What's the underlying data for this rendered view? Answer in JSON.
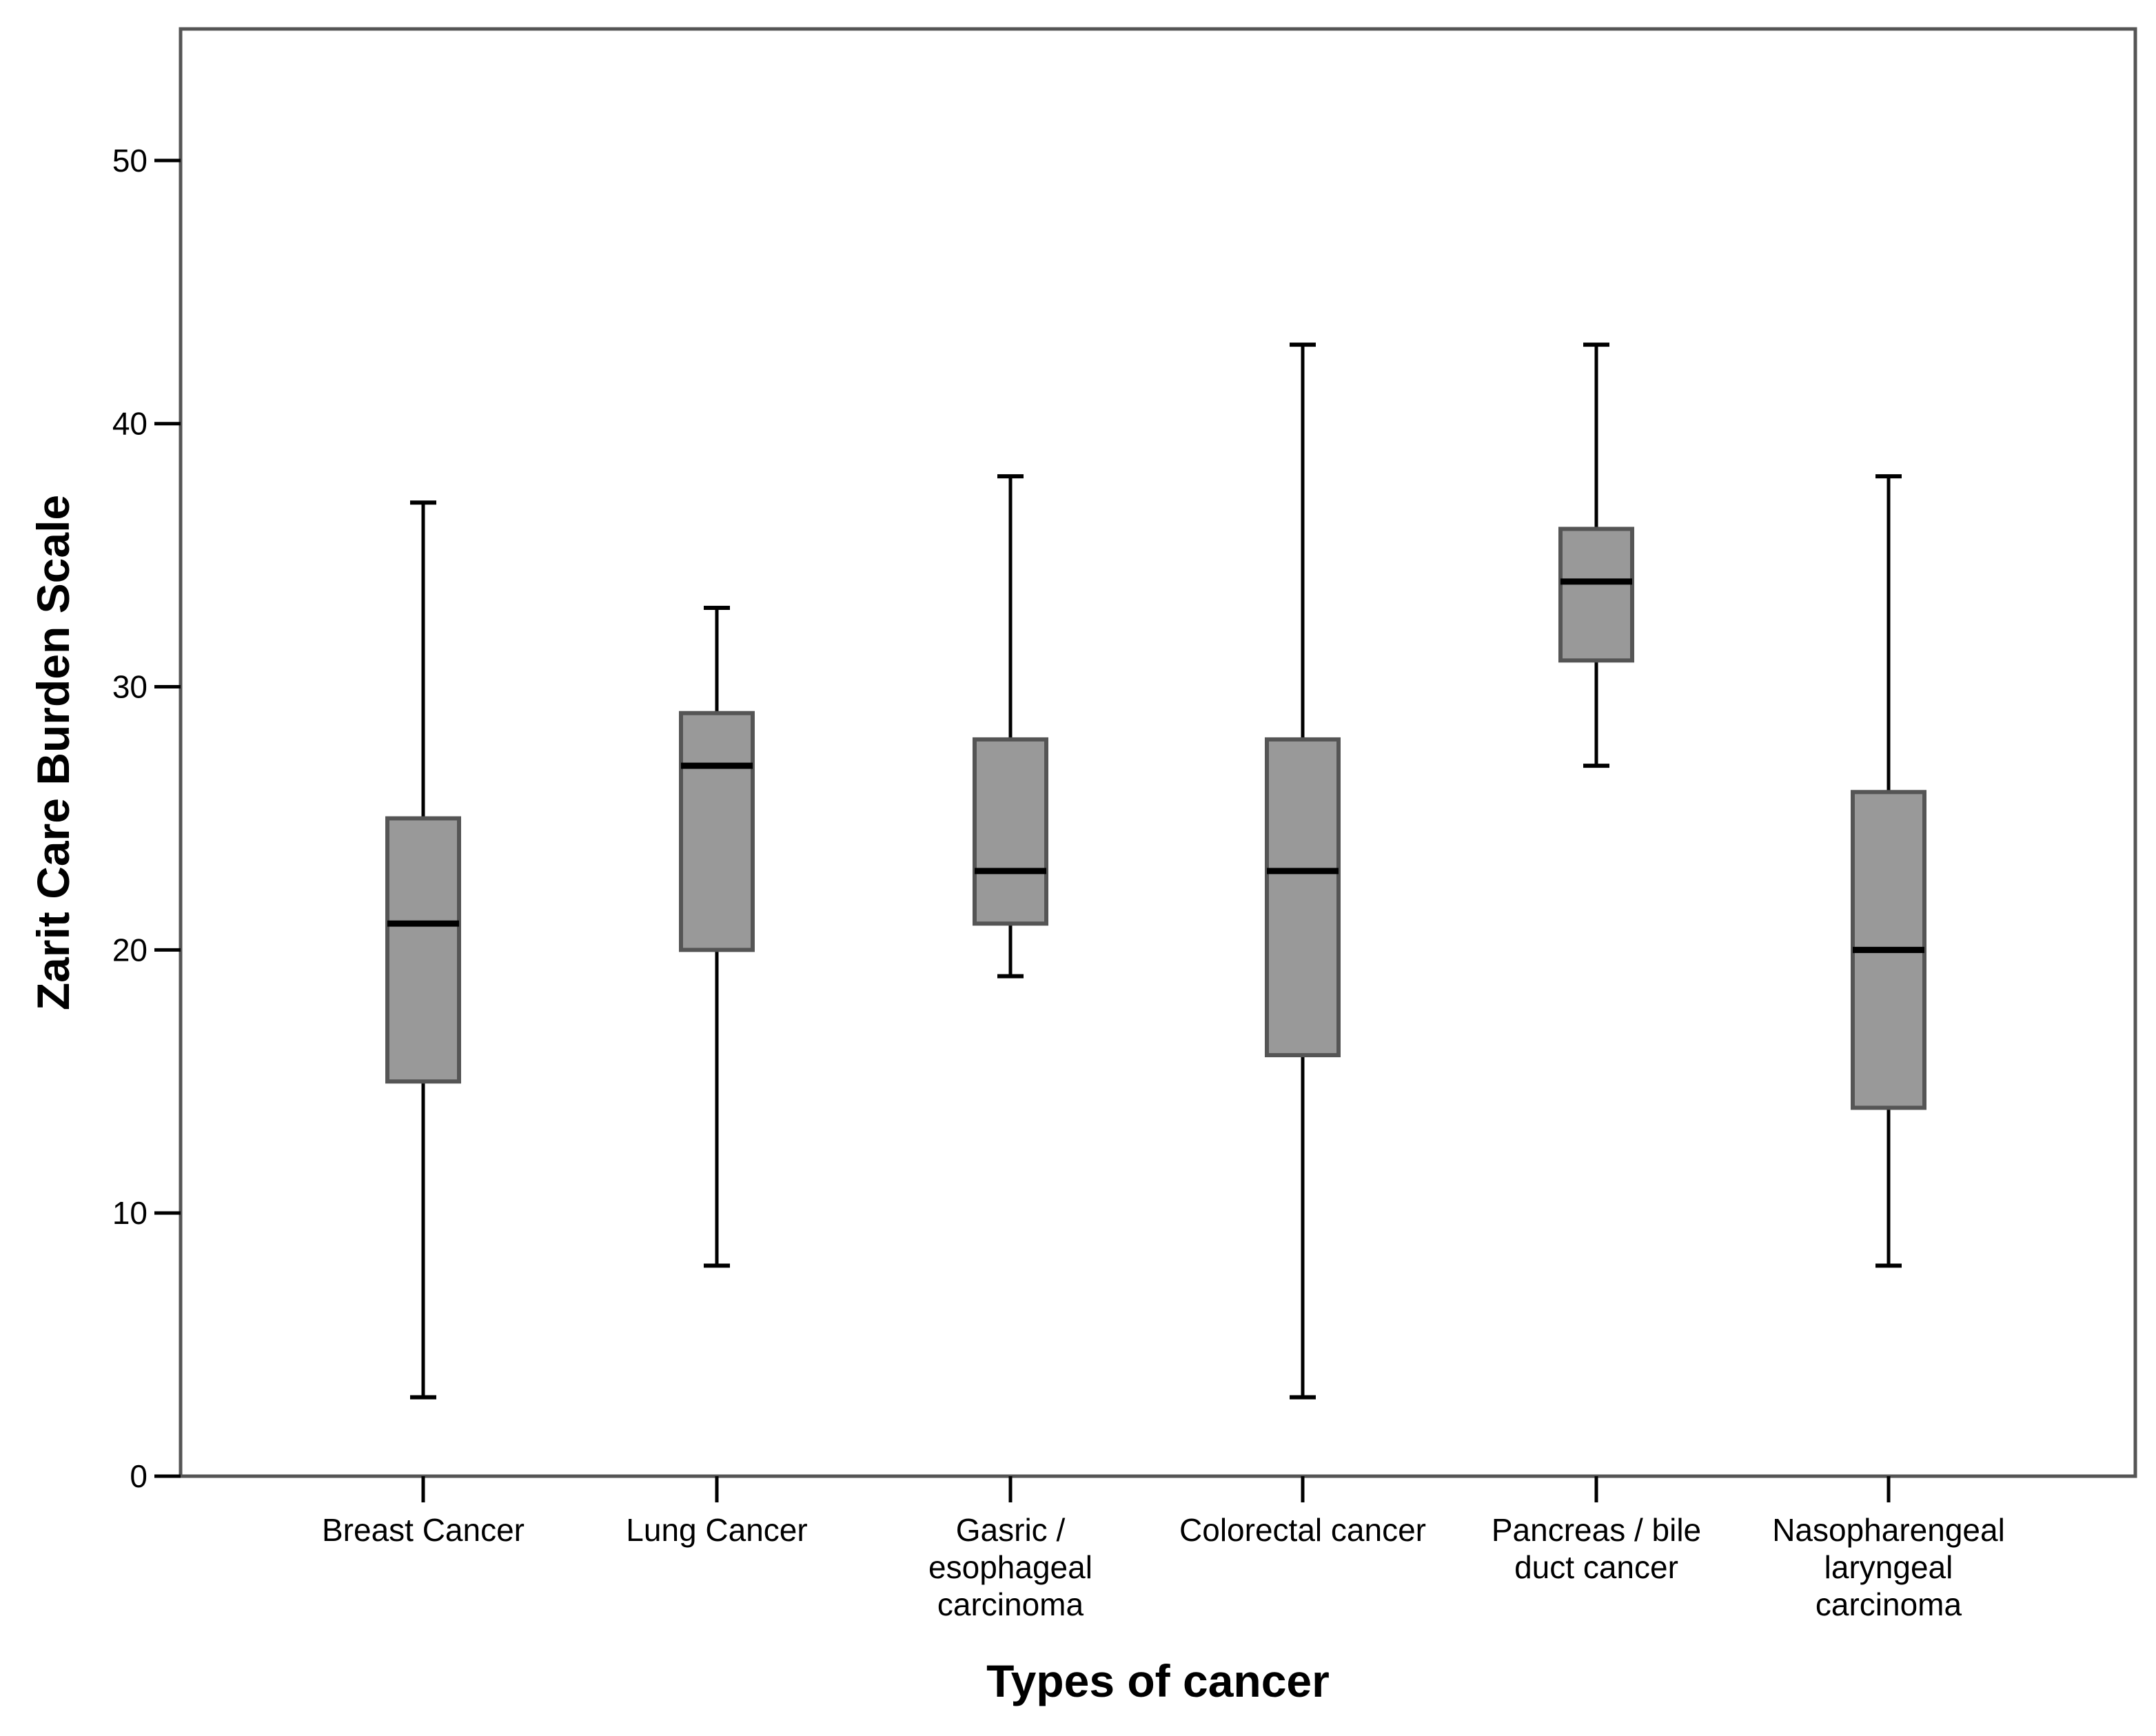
{
  "chart_data": {
    "type": "boxplot",
    "title": "",
    "xlabel": "Types of cancer",
    "ylabel": "Zarit Care Burden Scale",
    "ylim": [
      0,
      55
    ],
    "yticks": [
      0,
      10,
      20,
      30,
      40,
      50
    ],
    "ytick_labels": [
      "0",
      "10",
      "20",
      "30",
      "40",
      "50"
    ],
    "grid": false,
    "box_fill": "#999999",
    "box_stroke": "#555555",
    "median_color": "#000000",
    "categories": [
      {
        "label_lines": [
          "Breast Cancer"
        ],
        "min": 3,
        "q1": 15,
        "median": 21,
        "q3": 25,
        "max": 37
      },
      {
        "label_lines": [
          "Lung Cancer"
        ],
        "min": 8,
        "q1": 20,
        "median": 27,
        "q3": 29,
        "max": 33
      },
      {
        "label_lines": [
          "Gasric /",
          "esophageal",
          "carcinoma"
        ],
        "min": 19,
        "q1": 21,
        "median": 23,
        "q3": 28,
        "max": 38
      },
      {
        "label_lines": [
          "Colorectal cancer"
        ],
        "min": 3,
        "q1": 16,
        "median": 23,
        "q3": 28,
        "max": 43
      },
      {
        "label_lines": [
          "Pancreas / bile",
          "duct cancer"
        ],
        "min": 27,
        "q1": 31,
        "median": 34,
        "q3": 36,
        "max": 43
      },
      {
        "label_lines": [
          "Nasopharengeal",
          "laryngeal",
          "carcinoma"
        ],
        "min": 8,
        "q1": 14,
        "median": 20,
        "q3": 26,
        "max": 38
      }
    ]
  }
}
